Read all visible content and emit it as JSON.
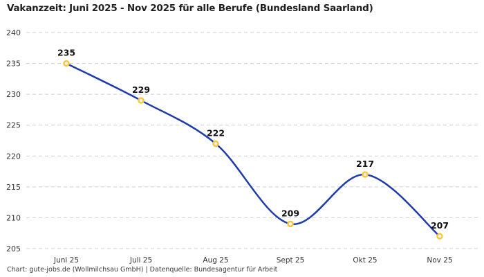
{
  "chart_data": {
    "type": "line",
    "title": "Vakanzzeit: Juni 2025 - Nov 2025 für alle Berufe (Bundesland Saarland)",
    "categories": [
      "Juni 25",
      "Juli 25",
      "Aug 25",
      "Sept 25",
      "Okt 25",
      "Nov 25"
    ],
    "values": [
      235,
      229,
      222,
      209,
      217,
      207
    ],
    "ylim": [
      205,
      240
    ],
    "yticks": [
      205,
      210,
      215,
      220,
      225,
      230,
      235,
      240
    ],
    "xlabel": "",
    "ylabel": "",
    "grid": "horizontal-dashed",
    "legend": false,
    "smooth": true,
    "colors": {
      "line": "#1e3bad",
      "marker_stroke": "#ffc53d",
      "marker_fill": "#ffffff",
      "gridline": "#cfcfcf",
      "tick_label": "#333333",
      "data_label": "#111111"
    },
    "footer": "Chart: gute-jobs.de (Wollmilchsau GmbH) | Datenquelle: Bundesagentur für Arbeit"
  }
}
